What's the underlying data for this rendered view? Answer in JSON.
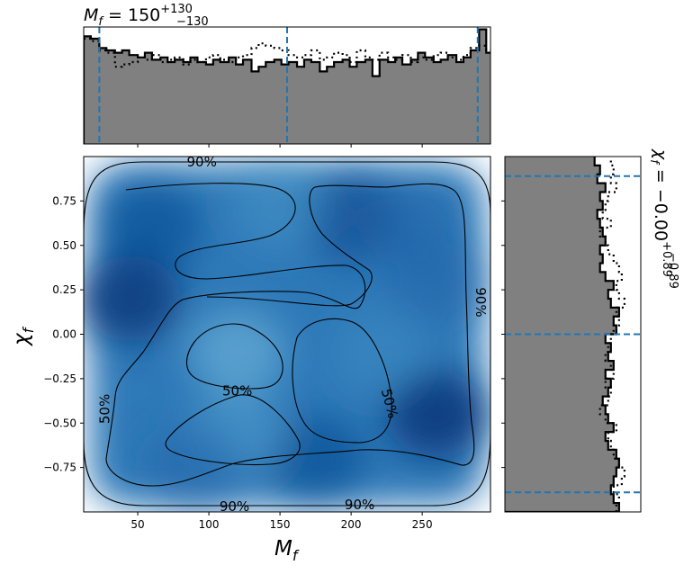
{
  "chart_data": [
    {
      "type": "histogram",
      "panel": "top-marginal",
      "title_main": "M",
      "title_sub": "f",
      "title_value": " = 150",
      "title_sup": "+130",
      "title_low": "−130",
      "xlim": [
        12,
        298
      ],
      "bin_edges": [
        12,
        17,
        23,
        28,
        34,
        39,
        44,
        50,
        55,
        60,
        66,
        71,
        76,
        82,
        87,
        92,
        98,
        103,
        108,
        114,
        119,
        124,
        130,
        135,
        140,
        146,
        151,
        156,
        162,
        167,
        172,
        178,
        183,
        188,
        194,
        199,
        204,
        210,
        215,
        220,
        226,
        231,
        236,
        242,
        247,
        252,
        258,
        263,
        268,
        274,
        279,
        284,
        290,
        295,
        298
      ],
      "series": [
        {
          "name": "",
          "style": "filled-solid",
          "values": [
            0.92,
            0.9,
            0.82,
            0.8,
            0.78,
            0.8,
            0.76,
            0.74,
            0.78,
            0.72,
            0.74,
            0.7,
            0.72,
            0.7,
            0.74,
            0.7,
            0.68,
            0.72,
            0.7,
            0.74,
            0.68,
            0.72,
            0.62,
            0.66,
            0.7,
            0.72,
            0.68,
            0.7,
            0.66,
            0.72,
            0.7,
            0.62,
            0.66,
            0.7,
            0.72,
            0.66,
            0.7,
            0.72,
            0.58,
            0.72,
            0.7,
            0.74,
            0.68,
            0.72,
            0.78,
            0.74,
            0.7,
            0.72,
            0.76,
            0.7,
            0.74,
            0.8,
            0.98,
            0.78
          ]
        },
        {
          "name": "",
          "style": "dotted",
          "values": [
            0.9,
            0.88,
            0.8,
            0.78,
            0.66,
            0.68,
            0.7,
            0.74,
            0.72,
            0.76,
            0.7,
            0.72,
            0.74,
            0.68,
            0.72,
            0.7,
            0.74,
            0.76,
            0.72,
            0.7,
            0.74,
            0.76,
            0.82,
            0.86,
            0.84,
            0.82,
            0.8,
            0.76,
            0.74,
            0.76,
            0.8,
            0.72,
            0.74,
            0.78,
            0.76,
            0.7,
            0.8,
            0.74,
            0.72,
            0.78,
            0.74,
            0.72,
            0.76,
            0.7,
            0.74,
            0.72,
            0.76,
            0.78,
            0.74,
            0.72,
            0.76,
            0.82,
            0.84,
            0.8
          ]
        }
      ],
      "quantile_lines": [
        23,
        155,
        289
      ],
      "xticks": [
        50,
        100,
        150,
        200,
        250
      ]
    },
    {
      "type": "heatmap",
      "panel": "joint-density",
      "xlabel_main": "M",
      "xlabel_sub": "f",
      "ylabel_main": "χ",
      "ylabel_sub": "f",
      "xlim": [
        12,
        298
      ],
      "ylim": [
        -1,
        1
      ],
      "xticks": [
        50,
        100,
        150,
        200,
        250
      ],
      "yticks": [
        0.75,
        0.5,
        0.25,
        0.0,
        -0.25,
        -0.5,
        -0.75
      ],
      "ytick_labels": [
        "0.75",
        "0.50",
        "0.25",
        "0.00",
        "−0.25",
        "−0.50",
        "−0.75"
      ],
      "colormap": "Blues",
      "contour_levels": [
        "50%",
        "90%"
      ],
      "contour_labels": [
        {
          "text": "90%",
          "x": 95,
          "y": 0.97
        },
        {
          "text": "50%",
          "x": 120,
          "y": -0.32
        },
        {
          "text": "50%",
          "x": 27,
          "y": -0.42
        },
        {
          "text": "50%",
          "x": 227,
          "y": -0.39
        },
        {
          "text": "90%",
          "x": 291,
          "y": 0.18
        },
        {
          "text": "90%",
          "x": 118,
          "y": -0.97
        },
        {
          "text": "90%",
          "x": 206,
          "y": -0.96
        }
      ]
    },
    {
      "type": "histogram",
      "panel": "right-marginal",
      "orientation": "horizontal",
      "label_main": "χ",
      "label_sub": "f",
      "label_value": " = −0.00",
      "label_sup": "+0.89",
      "label_low": "−0.89",
      "ylim": [
        -1,
        1
      ],
      "bin_edges": [
        -1.0,
        -0.95,
        -0.9,
        -0.85,
        -0.8,
        -0.75,
        -0.7,
        -0.65,
        -0.6,
        -0.55,
        -0.5,
        -0.45,
        -0.4,
        -0.35,
        -0.3,
        -0.25,
        -0.2,
        -0.15,
        -0.1,
        -0.05,
        0.0,
        0.05,
        0.1,
        0.15,
        0.2,
        0.25,
        0.3,
        0.35,
        0.4,
        0.45,
        0.5,
        0.55,
        0.6,
        0.65,
        0.7,
        0.75,
        0.8,
        0.85,
        0.9,
        0.95,
        1.0
      ],
      "series": [
        {
          "name": "",
          "style": "filled-solid",
          "values": [
            0.84,
            0.8,
            0.78,
            0.8,
            0.82,
            0.84,
            0.82,
            0.76,
            0.74,
            0.8,
            0.76,
            0.74,
            0.72,
            0.76,
            0.78,
            0.74,
            0.8,
            0.76,
            0.78,
            0.74,
            0.82,
            0.8,
            0.84,
            0.78,
            0.76,
            0.8,
            0.74,
            0.7,
            0.72,
            0.7,
            0.74,
            0.72,
            0.7,
            0.68,
            0.72,
            0.7,
            0.74,
            0.68,
            0.7,
            0.66
          ]
        },
        {
          "name": "",
          "style": "dotted",
          "values": [
            0.82,
            0.84,
            0.8,
            0.86,
            0.88,
            0.84,
            0.8,
            0.78,
            0.76,
            0.82,
            0.74,
            0.7,
            0.76,
            0.78,
            0.74,
            0.8,
            0.78,
            0.74,
            0.76,
            0.78,
            0.8,
            0.84,
            0.82,
            0.88,
            0.84,
            0.82,
            0.86,
            0.84,
            0.8,
            0.76,
            0.74,
            0.7,
            0.78,
            0.72,
            0.74,
            0.76,
            0.82,
            0.78,
            0.8,
            0.78
          ]
        }
      ],
      "quantile_lines": [
        -0.89,
        0.0,
        0.89
      ]
    }
  ]
}
